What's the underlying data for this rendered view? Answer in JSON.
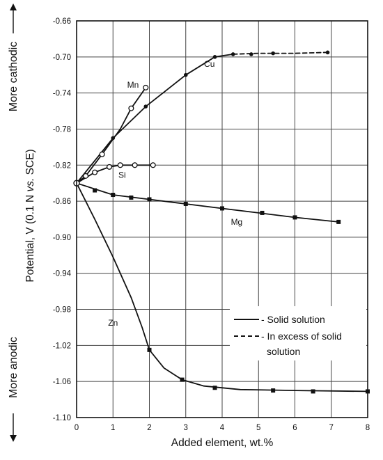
{
  "chart_data": {
    "type": "line",
    "xlabel": "Added element, wt.%",
    "ylabel": "Potential, V (0.1  N vs. SCE)",
    "ylabel_parts": [
      "Potential, V (0.1  N ",
      "vs.",
      " SCE)"
    ],
    "xlim": [
      0,
      8
    ],
    "ylim": [
      -1.1,
      -0.66
    ],
    "x_ticks": [
      0,
      1,
      2,
      3,
      4,
      5,
      6,
      7,
      8
    ],
    "y_ticks": [
      -0.66,
      -0.7,
      -0.74,
      -0.78,
      -0.82,
      -0.86,
      -0.9,
      -0.94,
      -0.98,
      -1.02,
      -1.06,
      -1.1
    ],
    "x_tick_labels": [
      "0",
      "1",
      "2",
      "3",
      "4",
      "5",
      "6",
      "7",
      "8"
    ],
    "y_tick_labels": [
      "-0.66",
      "-0.70",
      "-0.74",
      "-0.78",
      "-0.82",
      "-0.86",
      "-0.90",
      "-0.94",
      "-0.98",
      "-1.02",
      "-1.06",
      "-1.10"
    ],
    "grid": true,
    "side_labels": {
      "top": "More cathodic",
      "bottom": "More anodic"
    },
    "legend": {
      "placement": "lower-right",
      "entries": [
        {
          "label": "- Solid solution",
          "style": "solid"
        },
        {
          "label": "- In excess of solid",
          "label2": "solution",
          "style": "dashed"
        }
      ]
    },
    "series": [
      {
        "name": "Mn",
        "marker": "open-circle",
        "segments": [
          {
            "style": "solid",
            "points": [
              [
                0,
                -0.84
              ],
              [
                0.25,
                -0.832
              ],
              [
                0.7,
                -0.808
              ],
              [
                1.2,
                -0.78
              ],
              [
                1.5,
                -0.757
              ],
              [
                1.9,
                -0.734
              ]
            ]
          }
        ],
        "markers": [
          [
            0.25,
            -0.832
          ],
          [
            0.7,
            -0.808
          ],
          [
            1.5,
            -0.757
          ],
          [
            1.9,
            -0.734
          ]
        ],
        "label_at": [
          1.55,
          -0.734
        ]
      },
      {
        "name": "Cu",
        "marker": "filled-circle",
        "segments": [
          {
            "style": "solid",
            "points": [
              [
                0,
                -0.84
              ],
              [
                1,
                -0.79
              ],
              [
                1.9,
                -0.755
              ],
              [
                3,
                -0.72
              ],
              [
                3.8,
                -0.7
              ],
              [
                4.3,
                -0.697
              ]
            ]
          },
          {
            "style": "dashed",
            "points": [
              [
                4.3,
                -0.697
              ],
              [
                5,
                -0.696
              ],
              [
                6,
                -0.696
              ],
              [
                6.9,
                -0.695
              ]
            ]
          }
        ],
        "markers": [
          [
            1,
            -0.79
          ],
          [
            1.9,
            -0.755
          ],
          [
            3,
            -0.72
          ],
          [
            3.8,
            -0.7
          ],
          [
            4.3,
            -0.697
          ],
          [
            4.8,
            -0.697
          ],
          [
            5.4,
            -0.696
          ],
          [
            6.9,
            -0.695
          ]
        ],
        "label_at": [
          3.65,
          -0.711
        ]
      },
      {
        "name": "Si",
        "marker": "open-circle",
        "segments": [
          {
            "style": "solid",
            "points": [
              [
                0,
                -0.84
              ],
              [
                0.5,
                -0.828
              ],
              [
                0.9,
                -0.822
              ],
              [
                1.2,
                -0.82
              ],
              [
                1.6,
                -0.82
              ],
              [
                2.1,
                -0.82
              ]
            ]
          }
        ],
        "markers": [
          [
            0.5,
            -0.828
          ],
          [
            0.9,
            -0.822
          ],
          [
            1.2,
            -0.82
          ],
          [
            1.6,
            -0.82
          ],
          [
            2.1,
            -0.82
          ]
        ],
        "label_at": [
          1.25,
          -0.834
        ]
      },
      {
        "name": "Mg",
        "marker": "filled-square",
        "segments": [
          {
            "style": "solid",
            "points": [
              [
                0,
                -0.84
              ],
              [
                1,
                -0.853
              ],
              [
                2,
                -0.858
              ],
              [
                3,
                -0.863
              ],
              [
                4,
                -0.868
              ],
              [
                5,
                -0.873
              ],
              [
                6,
                -0.878
              ],
              [
                7.2,
                -0.883
              ]
            ]
          }
        ],
        "markers": [
          [
            0.5,
            -0.848
          ],
          [
            1,
            -0.853
          ],
          [
            1.5,
            -0.856
          ],
          [
            2,
            -0.858
          ],
          [
            3,
            -0.863
          ],
          [
            4,
            -0.868
          ],
          [
            5.1,
            -0.873
          ],
          [
            6,
            -0.878
          ],
          [
            7.2,
            -0.883
          ]
        ],
        "label_at": [
          4.4,
          -0.886
        ]
      },
      {
        "name": "Zn",
        "marker": "filled-square",
        "segments": [
          {
            "style": "solid",
            "points": [
              [
                0,
                -0.84
              ],
              [
                0.5,
                -0.88
              ],
              [
                1,
                -0.922
              ],
              [
                1.5,
                -0.967
              ],
              [
                1.8,
                -1.0
              ],
              [
                2,
                -1.025
              ],
              [
                2.4,
                -1.045
              ],
              [
                2.9,
                -1.058
              ],
              [
                3.5,
                -1.065
              ],
              [
                4.5,
                -1.069
              ],
              [
                6,
                -1.07
              ],
              [
                8,
                -1.071
              ]
            ]
          }
        ],
        "markers": [
          [
            2,
            -1.025
          ],
          [
            2.9,
            -1.058
          ],
          [
            3.8,
            -1.067
          ],
          [
            5.4,
            -1.07
          ],
          [
            6.5,
            -1.071
          ],
          [
            8,
            -1.071
          ]
        ],
        "label_at": [
          1.0,
          -0.998
        ]
      }
    ]
  }
}
